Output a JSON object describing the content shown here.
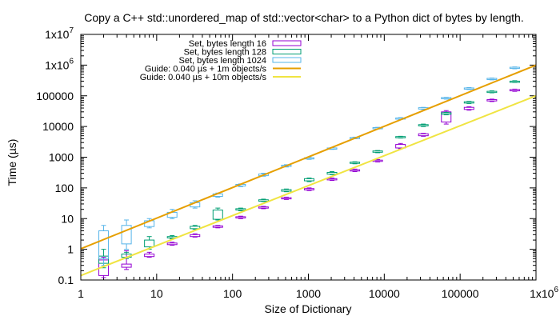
{
  "chart_data": {
    "type": "line",
    "title": "Copy a C++ std::unordered_map of std::vector<char> to a Python dict of bytes by length.",
    "xlabel": "Size of Dictionary",
    "ylabel": "Time (µs)",
    "x_scale": "log",
    "y_scale": "log",
    "xlim": [
      1,
      1000000
    ],
    "ylim": [
      0.1,
      10000000
    ],
    "x_ticks": [
      {
        "value": 1,
        "base": "1",
        "exp": ""
      },
      {
        "value": 10,
        "base": "10",
        "exp": ""
      },
      {
        "value": 100,
        "base": "100",
        "exp": ""
      },
      {
        "value": 1000,
        "base": "1000",
        "exp": ""
      },
      {
        "value": 10000,
        "base": "10000",
        "exp": ""
      },
      {
        "value": 100000,
        "base": "100000",
        "exp": ""
      },
      {
        "value": 1000000,
        "base": "1x10",
        "exp": "6"
      }
    ],
    "y_ticks": [
      {
        "value": 0.1,
        "base": "0.1",
        "exp": ""
      },
      {
        "value": 1,
        "base": "1",
        "exp": ""
      },
      {
        "value": 10,
        "base": "10",
        "exp": ""
      },
      {
        "value": 100,
        "base": "100",
        "exp": ""
      },
      {
        "value": 1000,
        "base": "1000",
        "exp": ""
      },
      {
        "value": 10000,
        "base": "10000",
        "exp": ""
      },
      {
        "value": 100000,
        "base": "100000",
        "exp": ""
      },
      {
        "value": 1000000,
        "base": "1x10",
        "exp": "6"
      },
      {
        "value": 10000000,
        "base": "1x10",
        "exp": "7"
      }
    ],
    "grid": false,
    "legend_position": "top-left",
    "series": [
      {
        "name": "Set, bytes length 16",
        "kind": "boxplot",
        "color": "#9400d3",
        "points": [
          {
            "x": 2,
            "min": 0.12,
            "q1": 0.14,
            "q3": 0.45,
            "max": 0.55
          },
          {
            "x": 4,
            "min": 0.22,
            "q1": 0.26,
            "q3": 0.33,
            "max": 0.9
          },
          {
            "x": 8,
            "min": 0.55,
            "q1": 0.58,
            "q3": 0.7,
            "max": 0.8
          },
          {
            "x": 16,
            "min": 1.35,
            "q1": 1.42,
            "q3": 1.6,
            "max": 1.7
          },
          {
            "x": 32,
            "min": 2.5,
            "q1": 2.6,
            "q3": 3.0,
            "max": 3.2
          },
          {
            "x": 64,
            "min": 5.0,
            "q1": 5.2,
            "q3": 5.8,
            "max": 6.0
          },
          {
            "x": 128,
            "min": 10,
            "q1": 10.5,
            "q3": 11.5,
            "max": 12
          },
          {
            "x": 256,
            "min": 21,
            "q1": 22,
            "q3": 24,
            "max": 25
          },
          {
            "x": 512,
            "min": 42,
            "q1": 44,
            "q3": 48,
            "max": 50
          },
          {
            "x": 1024,
            "min": 82,
            "q1": 86,
            "q3": 95,
            "max": 100
          },
          {
            "x": 2048,
            "min": 175,
            "q1": 182,
            "q3": 200,
            "max": 210
          },
          {
            "x": 4096,
            "min": 340,
            "q1": 355,
            "q3": 390,
            "max": 410
          },
          {
            "x": 8192,
            "min": 700,
            "q1": 730,
            "q3": 800,
            "max": 840
          },
          {
            "x": 16384,
            "min": 1900,
            "q1": 2000,
            "q3": 2600,
            "max": 2800
          },
          {
            "x": 32768,
            "min": 4800,
            "q1": 5000,
            "q3": 5800,
            "max": 6000
          },
          {
            "x": 65536,
            "min": 12000,
            "q1": 14000,
            "q3": 30000,
            "max": 33000
          },
          {
            "x": 131072,
            "min": 34000,
            "q1": 36000,
            "q3": 42000,
            "max": 44000
          },
          {
            "x": 262144,
            "min": 65000,
            "q1": 68000,
            "q3": 75000,
            "max": 78000
          },
          {
            "x": 524288,
            "min": 140000,
            "q1": 145000,
            "q3": 160000,
            "max": 165000
          }
        ]
      },
      {
        "name": "Set, bytes length 128",
        "kind": "boxplot",
        "color": "#009e73",
        "points": [
          {
            "x": 2,
            "min": 0.25,
            "q1": 0.35,
            "q3": 0.6,
            "max": 1.0
          },
          {
            "x": 4,
            "min": 0.5,
            "q1": 0.55,
            "q3": 0.7,
            "max": 0.8
          },
          {
            "x": 8,
            "min": 1.0,
            "q1": 1.2,
            "q3": 2.0,
            "max": 2.6
          },
          {
            "x": 16,
            "min": 2.2,
            "q1": 2.35,
            "q3": 2.6,
            "max": 2.8
          },
          {
            "x": 32,
            "min": 4.5,
            "q1": 4.7,
            "q3": 5.6,
            "max": 6.0
          },
          {
            "x": 64,
            "min": 9.0,
            "q1": 9.5,
            "q3": 19,
            "max": 22
          },
          {
            "x": 128,
            "min": 18,
            "q1": 19,
            "q3": 21,
            "max": 22
          },
          {
            "x": 256,
            "min": 36,
            "q1": 37,
            "q3": 41,
            "max": 43
          },
          {
            "x": 512,
            "min": 75,
            "q1": 78,
            "q3": 88,
            "max": 92
          },
          {
            "x": 1024,
            "min": 160,
            "q1": 170,
            "q3": 200,
            "max": 210
          },
          {
            "x": 2048,
            "min": 270,
            "q1": 280,
            "q3": 320,
            "max": 340
          },
          {
            "x": 4096,
            "min": 610,
            "q1": 630,
            "q3": 690,
            "max": 710
          },
          {
            "x": 8192,
            "min": 1400,
            "q1": 1450,
            "q3": 1600,
            "max": 1650
          },
          {
            "x": 16384,
            "min": 4200,
            "q1": 4300,
            "q3": 4700,
            "max": 4800
          },
          {
            "x": 32768,
            "min": 10000,
            "q1": 10500,
            "q3": 11500,
            "max": 12000
          },
          {
            "x": 65536,
            "min": 24000,
            "q1": 25000,
            "q3": 28000,
            "max": 29000
          },
          {
            "x": 131072,
            "min": 56000,
            "q1": 58000,
            "q3": 64000,
            "max": 66000
          },
          {
            "x": 262144,
            "min": 125000,
            "q1": 130000,
            "q3": 140000,
            "max": 145000
          },
          {
            "x": 524288,
            "min": 270000,
            "q1": 280000,
            "q3": 300000,
            "max": 310000
          }
        ]
      },
      {
        "name": "Set, bytes length 1024",
        "kind": "boxplot",
        "color": "#56b4e9",
        "points": [
          {
            "x": 2,
            "min": 0.3,
            "q1": 0.5,
            "q3": 4.0,
            "max": 6.0
          },
          {
            "x": 4,
            "min": 1.0,
            "q1": 1.5,
            "q3": 6.0,
            "max": 9.0
          },
          {
            "x": 8,
            "min": 5.0,
            "q1": 5.5,
            "q3": 8.5,
            "max": 10
          },
          {
            "x": 16,
            "min": 10,
            "q1": 11,
            "q3": 16,
            "max": 20
          },
          {
            "x": 32,
            "min": 22,
            "q1": 24,
            "q3": 33,
            "max": 38
          },
          {
            "x": 64,
            "min": 50,
            "q1": 53,
            "q3": 64,
            "max": 68
          },
          {
            "x": 128,
            "min": 110,
            "q1": 115,
            "q3": 130,
            "max": 135
          },
          {
            "x": 256,
            "min": 240,
            "q1": 250,
            "q3": 285,
            "max": 300
          },
          {
            "x": 512,
            "min": 480,
            "q1": 500,
            "q3": 550,
            "max": 570
          },
          {
            "x": 1024,
            "min": 850,
            "q1": 880,
            "q3": 960,
            "max": 990
          },
          {
            "x": 2048,
            "min": 1800,
            "q1": 1850,
            "q3": 2000,
            "max": 2050
          },
          {
            "x": 4096,
            "min": 4000,
            "q1": 4100,
            "q3": 4400,
            "max": 4500
          },
          {
            "x": 8192,
            "min": 8300,
            "q1": 8500,
            "q3": 9200,
            "max": 9400
          },
          {
            "x": 16384,
            "min": 17000,
            "q1": 17500,
            "q3": 19000,
            "max": 19500
          },
          {
            "x": 32768,
            "min": 36000,
            "q1": 37000,
            "q3": 41000,
            "max": 42000
          },
          {
            "x": 65536,
            "min": 78000,
            "q1": 80000,
            "q3": 88000,
            "max": 90000
          },
          {
            "x": 131072,
            "min": 160000,
            "q1": 165000,
            "q3": 180000,
            "max": 185000
          },
          {
            "x": 262144,
            "min": 330000,
            "q1": 340000,
            "q3": 370000,
            "max": 380000
          },
          {
            "x": 524288,
            "min": 760000,
            "q1": 780000,
            "q3": 850000,
            "max": 870000
          }
        ]
      },
      {
        "name": "Guide: 0.040 µs + 1m objects/s",
        "kind": "line",
        "color": "#e69f00",
        "x": [
          1,
          1000000
        ],
        "y": [
          1.04,
          1000000
        ]
      },
      {
        "name": "Guide: 0.040 µs + 10m objects/s",
        "kind": "line",
        "color": "#f0e442",
        "x": [
          1,
          1000000
        ],
        "y": [
          0.14,
          100000
        ]
      }
    ]
  }
}
